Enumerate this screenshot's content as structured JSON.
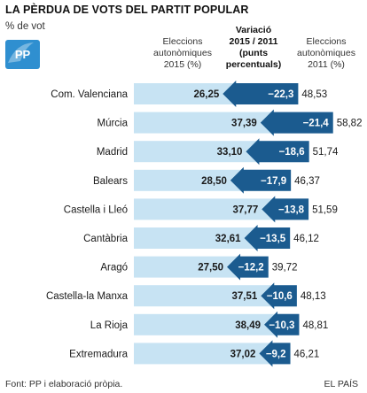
{
  "header": {
    "title": "LA PÈRDUA DE VOTS DEL PARTIT POPULAR",
    "unit_label": "% de vot",
    "logo_text": "PP"
  },
  "columns": {
    "left": [
      "Eleccions",
      "autonòmiques",
      "2015 (%)"
    ],
    "middle": [
      "Variació",
      "2015 / 2011",
      "(punts",
      "percentuals)"
    ],
    "right": [
      "Eleccions",
      "autonòmiques",
      "2011 (%)"
    ]
  },
  "footer": {
    "source": "Font: PP i elaboració pròpia.",
    "credit": "EL PAÍS"
  },
  "colors": {
    "bar_2011": "#c7e3f3",
    "arrow": "#1b5b8f",
    "logo": "#2f8fd0"
  },
  "chart_data": {
    "type": "bar",
    "title": "LA PÈRDUA DE VOTS DEL PARTIT POPULAR",
    "ylabel": "% de vot",
    "xlim": [
      0,
      60
    ],
    "grid": false,
    "categories": [
      "Com. Valenciana",
      "Múrcia",
      "Madrid",
      "Balears",
      "Castella i Lleó",
      "Cantàbria",
      "Aragó",
      "Castella-la Manxa",
      "La Rioja",
      "Extremadura"
    ],
    "series": [
      {
        "name": "Eleccions autonòmiques 2015 (%)",
        "values": [
          26.25,
          37.39,
          33.1,
          28.5,
          37.77,
          32.61,
          27.5,
          37.51,
          38.49,
          37.02
        ]
      },
      {
        "name": "Eleccions autonòmiques 2011 (%)",
        "values": [
          48.53,
          58.82,
          51.74,
          46.37,
          51.59,
          46.12,
          39.72,
          48.13,
          48.81,
          46.21
        ]
      }
    ],
    "value_labels_2015": [
      "26,25",
      "37,39",
      "33,10",
      "28,50",
      "37,77",
      "32,61",
      "27,50",
      "37,51",
      "38,49",
      "37,02"
    ],
    "value_labels_2011": [
      "48,53",
      "58,82",
      "51,74",
      "46,37",
      "51,59",
      "46,12",
      "39,72",
      "48,13",
      "48,81",
      "46,21"
    ],
    "change_labels": [
      "−22,3",
      "−21,4",
      "−18,6",
      "−17,9",
      "−13,8",
      "−13,5",
      "−12,2",
      "−10,6",
      "−10,3",
      "−9,2"
    ]
  }
}
